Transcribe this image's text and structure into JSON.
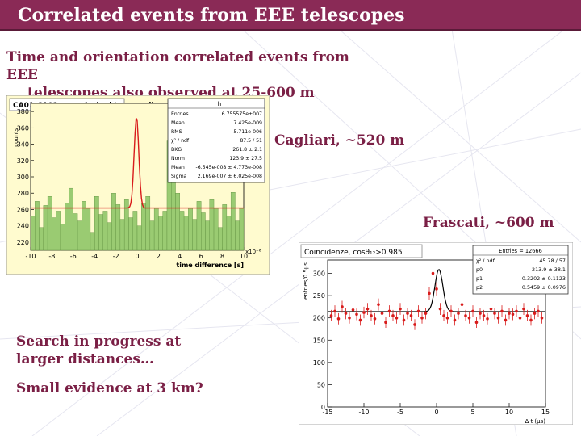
{
  "slide": {
    "title": "Correlated events from EEE telescopes",
    "subtitle_line1": "Time and orientation correlated events  from EEE",
    "subtitle_line2": "telescopes also observed at 25-600 m distances",
    "label_cagliari": "Cagliari, ~520 m",
    "label_frascati": "Frascati, ~600 m",
    "search_text": "Search in progress at larger distances…",
    "evidence_text": "Small evidence at 3 km?"
  },
  "colors": {
    "title_bar": "#8a2a56",
    "text": "#7a1f45",
    "plot1_bg": "#fffbcf",
    "hist_fill": "#9acb72",
    "fit_line": "#d81b1b"
  },
  "chart_data": [
    {
      "type": "bar",
      "title": "CA01-CA02: correlazioni temporali",
      "xlabel": "time difference  [s]",
      "ylabel": "counts",
      "x_exponent": "x10⁻⁶",
      "xlim": [
        -10,
        10
      ],
      "ylim": [
        210,
        390
      ],
      "xticks": [
        "-10",
        "-8",
        "-6",
        "-4",
        "-2",
        "0",
        "2",
        "4",
        "6",
        "8",
        "10"
      ],
      "yticks": [
        "220",
        "240",
        "260",
        "280",
        "300",
        "320",
        "340",
        "360",
        "380"
      ],
      "bin_width": 0.4,
      "values": [
        252,
        270,
        238,
        265,
        276,
        250,
        258,
        242,
        268,
        286,
        255,
        246,
        270,
        262,
        232,
        276,
        254,
        258,
        244,
        280,
        266,
        248,
        272,
        250,
        258,
        240,
        268,
        276,
        246,
        262,
        252,
        258,
        344,
        372,
        280,
        258,
        252,
        262,
        248,
        270,
        256,
        246,
        272,
        262,
        238,
        266,
        252,
        281,
        246,
        262
      ],
      "fit_baseline": 261.8,
      "stats_header": "h",
      "stats": [
        [
          "Entries",
          "6.755575e+007"
        ],
        [
          "Mean",
          "7.425e-009"
        ],
        [
          "RMS",
          "5.711e-006"
        ],
        [
          "χ² / ndf",
          "87.5 / 51"
        ],
        [
          "BKG",
          "261.8 ± 2.1"
        ],
        [
          "Norm",
          "123.9 ± 27.5"
        ],
        [
          "Mean",
          "-6.545e-008 ± 4.773e-008"
        ],
        [
          "Sigma",
          "2.169e-007 ± 6.025e-008"
        ]
      ]
    },
    {
      "type": "scatter",
      "title": "Coincidenze, cosθ₁₂>0.985",
      "xlabel": "Δ t (μs)",
      "ylabel": "entries/0.5μs",
      "xlim": [
        -15,
        15
      ],
      "ylim": [
        0,
        330
      ],
      "xticks": [
        "-15",
        "-10",
        "-5",
        "0",
        "5",
        "10",
        "15"
      ],
      "yticks": [
        "0",
        "50",
        "100",
        "150",
        "200",
        "250",
        "300"
      ],
      "x": [
        -14.5,
        -14,
        -13.5,
        -13,
        -12.5,
        -12,
        -11.5,
        -11,
        -10.5,
        -10,
        -9.5,
        -9,
        -8.5,
        -8,
        -7.5,
        -7,
        -6.5,
        -6,
        -5.5,
        -5,
        -4.5,
        -4,
        -3.5,
        -3,
        -2.5,
        -2,
        -1.5,
        -1,
        -0.5,
        0,
        0.5,
        1,
        1.5,
        2,
        2.5,
        3,
        3.5,
        4,
        4.5,
        5,
        5.5,
        6,
        6.5,
        7,
        7.5,
        8,
        8.5,
        9,
        9.5,
        10,
        10.5,
        11,
        11.5,
        12,
        12.5,
        13,
        13.5,
        14,
        14.5
      ],
      "y": [
        205,
        215,
        198,
        225,
        210,
        200,
        218,
        208,
        195,
        212,
        220,
        205,
        198,
        230,
        210,
        190,
        215,
        205,
        200,
        220,
        195,
        210,
        205,
        185,
        215,
        200,
        210,
        255,
        300,
        265,
        220,
        205,
        200,
        215,
        195,
        210,
        230,
        205,
        200,
        215,
        190,
        210,
        205,
        198,
        220,
        210,
        200,
        215,
        195,
        210,
        208,
        215,
        200,
        220,
        205,
        195,
        210,
        215,
        200
      ],
      "fit_baseline": 213.9,
      "stats": [
        [
          "Entries = 12666",
          ""
        ],
        [
          "χ² / ndf",
          "45.78 / 57"
        ],
        [
          "p0",
          "213.9 ± 38.1"
        ],
        [
          "p1",
          "0.3202 ± 0.1123"
        ],
        [
          "p2",
          "0.5459 ± 0.0976"
        ]
      ]
    }
  ]
}
